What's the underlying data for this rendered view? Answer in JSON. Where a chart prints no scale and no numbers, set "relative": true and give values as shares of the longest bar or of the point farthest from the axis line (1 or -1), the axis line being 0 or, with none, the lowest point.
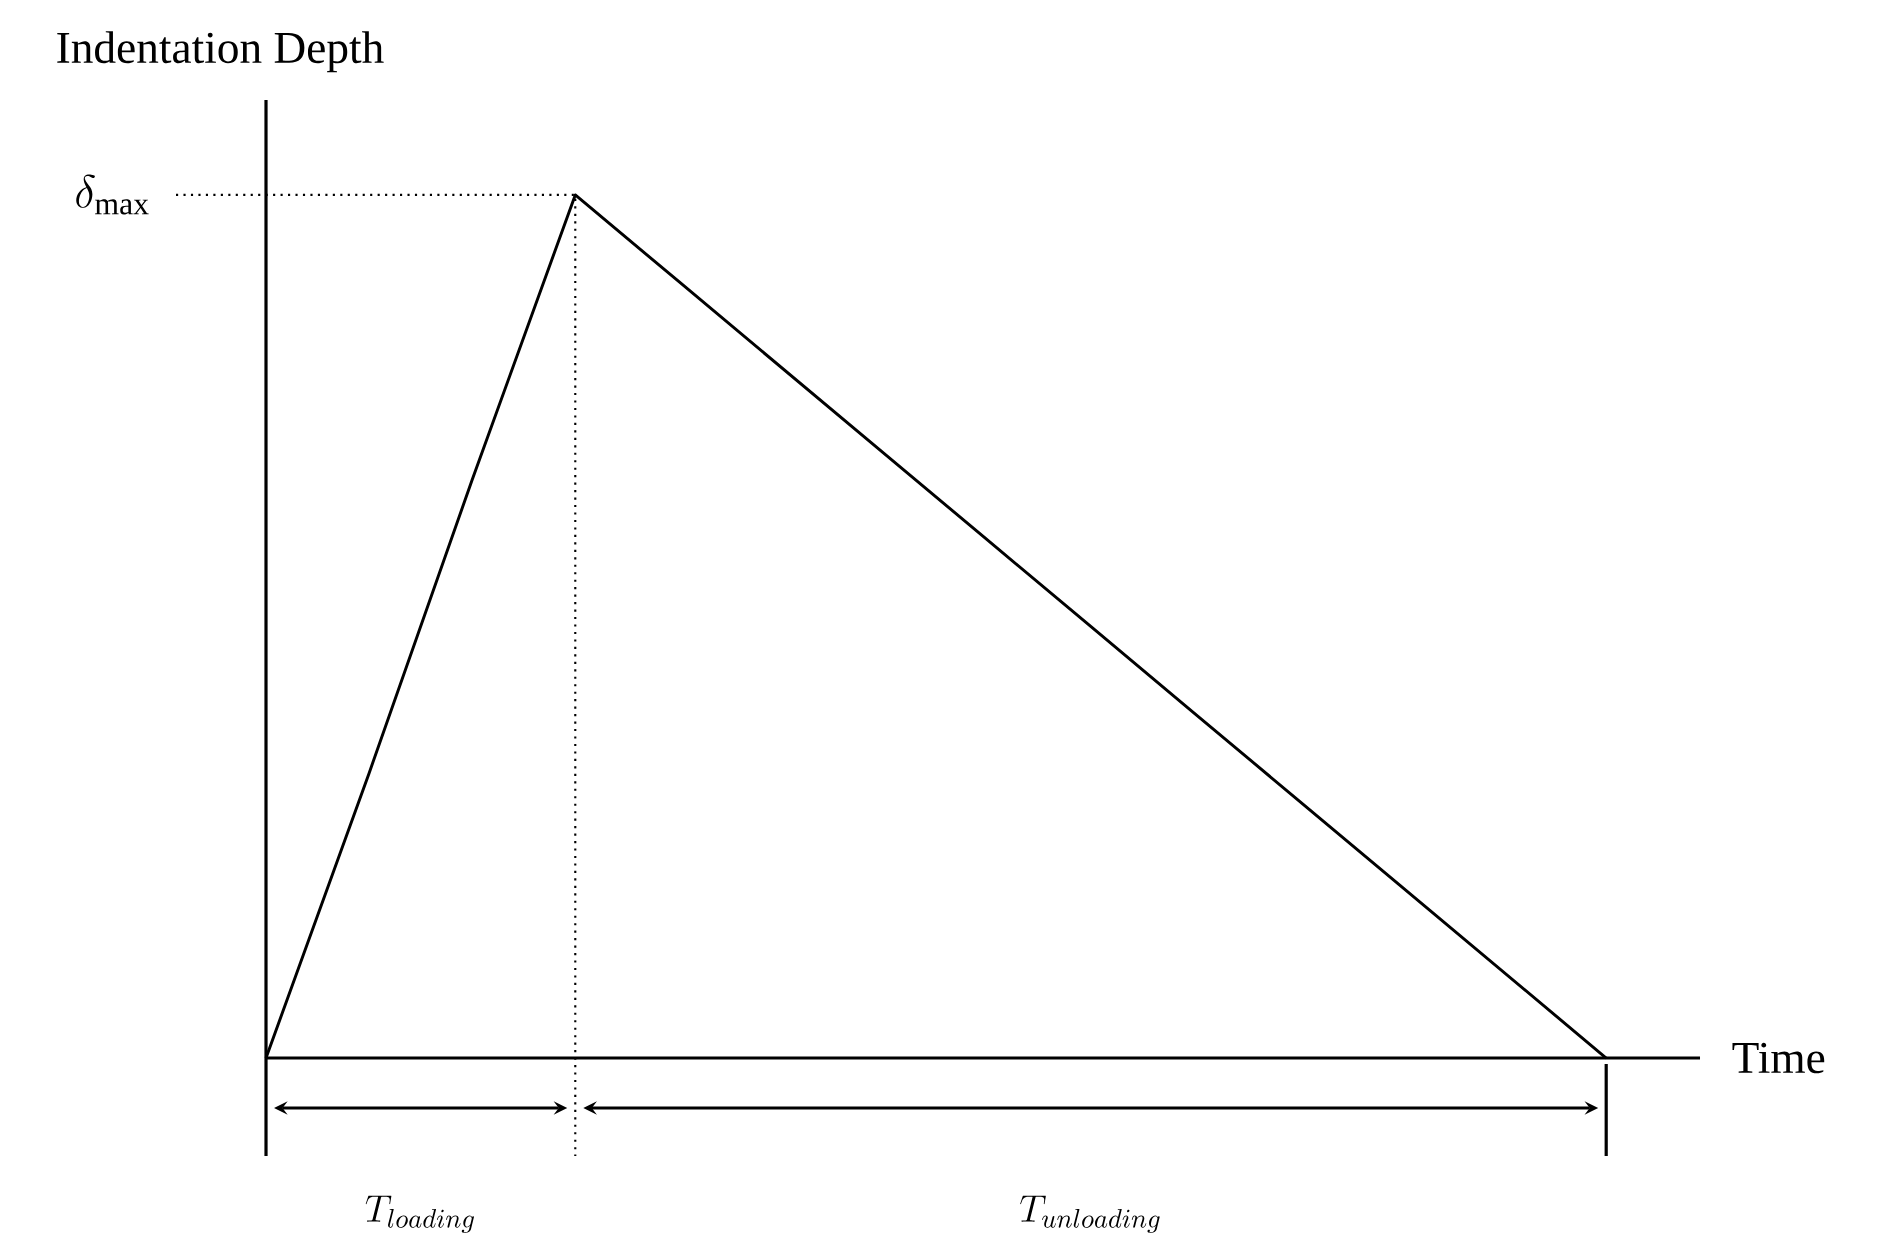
{
  "chart_data": {
    "type": "line",
    "relative": true,
    "xlabel": "Time",
    "ylabel": "Indentation Depth",
    "categories": [
      null,
      null,
      null,
      null,
      null,
      null,
      null,
      null,
      null,
      null,
      null,
      null,
      null,
      null
    ],
    "values": [
      0,
      0.33,
      0.67,
      1,
      0.9,
      0.8,
      0.7,
      0.6,
      0.5,
      0.4,
      0.3,
      0.2,
      0.1,
      0
    ],
    "color": "#000000",
    "line_style": "solid",
    "marker": "none",
    "ref_lines": [
      {
        "axis": "y",
        "value": 1,
        "label": "\\delta_{\\mathrm{max}}",
        "line_style": "dotted"
      }
    ],
    "annotations": [
      "T_{loading}",
      "T_{unloading}"
    ]
  }
}
